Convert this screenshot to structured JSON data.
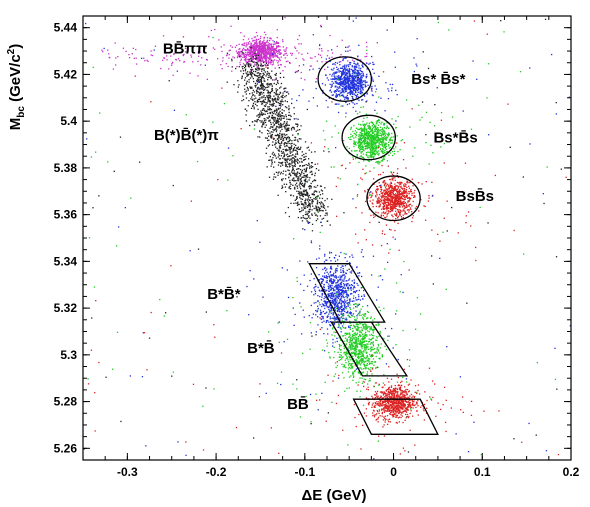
{
  "chart_data": {
    "type": "scatter",
    "xlabel": "ΔE (GeV)",
    "ylabel": "M_bc (GeV/c²)",
    "xlim": [
      -0.35,
      0.2
    ],
    "ylim": [
      5.255,
      5.445
    ],
    "x_ticks": [
      "-0.3",
      "-0.2",
      "-0.1",
      "0",
      "0.1",
      "0.2"
    ],
    "x_tick_values": [
      -0.3,
      -0.2,
      -0.1,
      0,
      0.1,
      0.2
    ],
    "y_ticks": [
      "5.26",
      "5.28",
      "5.3",
      "5.32",
      "5.34",
      "5.36",
      "5.38",
      "5.4",
      "5.42",
      "5.44"
    ],
    "y_tick_values": [
      5.26,
      5.28,
      5.3,
      5.32,
      5.34,
      5.36,
      5.38,
      5.4,
      5.42,
      5.44
    ],
    "grid": false,
    "clusters": [
      {
        "label": "BB̄ππ",
        "color": "#cc33cc",
        "center": [
          -0.15,
          5.43
        ],
        "spread": [
          0.012,
          0.0025
        ]
      },
      {
        "label": "B(*)B̄(*)π",
        "color": "#222222",
        "from": [
          -0.16,
          5.425
        ],
        "to": [
          -0.09,
          5.36
        ]
      },
      {
        "label": "Bs* B̄s*",
        "color": "#2233dd",
        "center": [
          -0.05,
          5.417
        ],
        "spread": [
          0.011,
          0.004
        ]
      },
      {
        "label": "Bs*B̄s",
        "color": "#22cc22",
        "center": [
          -0.025,
          5.392
        ],
        "spread": [
          0.011,
          0.004
        ]
      },
      {
        "label": "BsB̄s",
        "color": "#dd2222",
        "center": [
          0.0,
          5.367
        ],
        "spread": [
          0.011,
          0.004
        ]
      },
      {
        "label": "B*B̄*",
        "color": "#2233dd",
        "center": [
          -0.065,
          5.326
        ],
        "spread": [
          0.012,
          0.007
        ]
      },
      {
        "label": "B*B̄",
        "color": "#22cc22",
        "center": [
          -0.04,
          5.304
        ],
        "spread": [
          0.012,
          0.007
        ]
      },
      {
        "label": "BB̄",
        "color": "#dd2222",
        "center": [
          0.0,
          5.28
        ],
        "spread": [
          0.012,
          0.0035
        ]
      }
    ],
    "circles": [
      {
        "center": [
          -0.055,
          5.418
        ],
        "r_dx": 0.03,
        "r_dy": 0.0095
      },
      {
        "center": [
          -0.028,
          5.393
        ],
        "r_dx": 0.03,
        "r_dy": 0.0095
      },
      {
        "center": [
          0.0,
          5.367
        ],
        "r_dx": 0.03,
        "r_dy": 0.0095
      }
    ],
    "parallelograms": [
      {
        "corners": [
          [
            -0.095,
            5.339
          ],
          [
            -0.05,
            5.339
          ],
          [
            -0.01,
            5.314
          ],
          [
            -0.06,
            5.314
          ]
        ]
      },
      {
        "corners": [
          [
            -0.07,
            5.314
          ],
          [
            -0.025,
            5.314
          ],
          [
            0.015,
            5.291
          ],
          [
            -0.035,
            5.291
          ]
        ]
      },
      {
        "corners": [
          [
            -0.045,
            5.281
          ],
          [
            0.03,
            5.281
          ],
          [
            0.05,
            5.266
          ],
          [
            -0.025,
            5.266
          ]
        ]
      }
    ],
    "annotations": [
      {
        "text": "BB̄ππ",
        "at": [
          -0.26,
          5.431
        ]
      },
      {
        "text": "B(*)B̄(*)π",
        "at": [
          -0.27,
          5.394
        ]
      },
      {
        "text": "Bs* B̄s*",
        "at": [
          0.02,
          5.418
        ]
      },
      {
        "text": "Bs*B̄s",
        "at": [
          0.045,
          5.393
        ]
      },
      {
        "text": "BsB̄s",
        "at": [
          0.07,
          5.368
        ]
      },
      {
        "text": "B*B̄*",
        "at": [
          -0.21,
          5.326
        ]
      },
      {
        "text": "B*B̄",
        "at": [
          -0.165,
          5.303
        ]
      },
      {
        "text": "BB̄",
        "at": [
          -0.12,
          5.279
        ]
      }
    ]
  }
}
